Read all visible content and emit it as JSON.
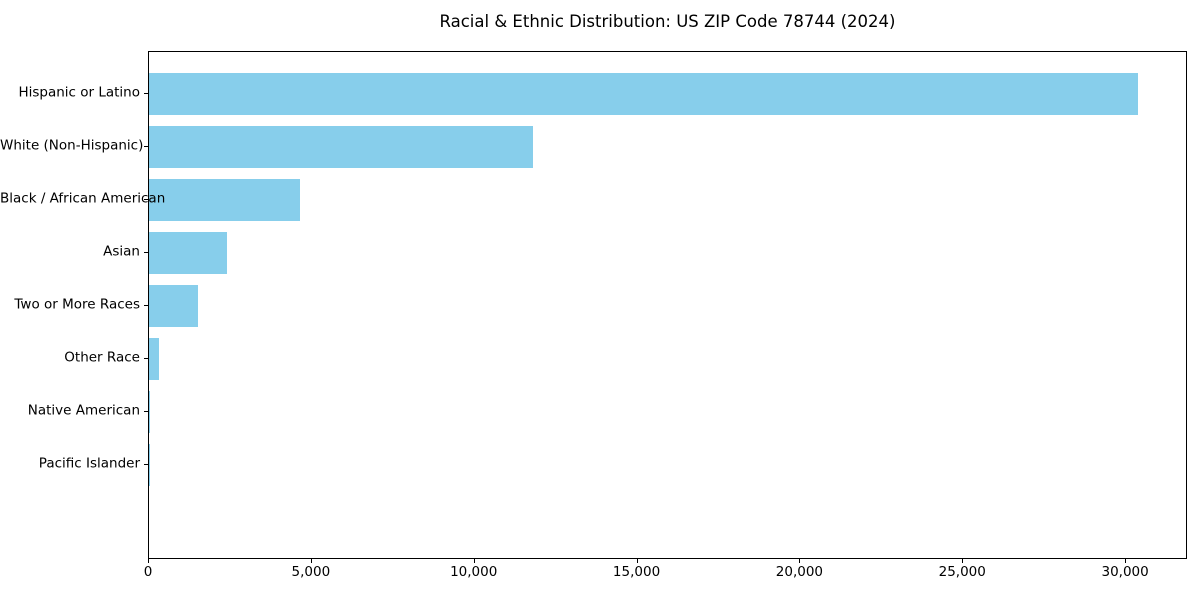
{
  "chart_data": {
    "type": "bar",
    "orientation": "horizontal",
    "title": "Racial & Ethnic Distribution: US ZIP Code 78744 (2024)",
    "xlabel": "",
    "ylabel": "",
    "categories": [
      "Hispanic or Latino",
      "White (Non-Hispanic)",
      "Black / African American",
      "Asian",
      "Two or More Races",
      "Other Race",
      "Native American",
      "Pacific Islander"
    ],
    "values": [
      30350,
      11800,
      4650,
      2400,
      1500,
      300,
      40,
      10
    ],
    "xlim": [
      0,
      31900
    ],
    "x_ticks": [
      0,
      5000,
      10000,
      15000,
      20000,
      25000,
      30000
    ],
    "x_tick_labels": [
      "0",
      "5,000",
      "10,000",
      "15,000",
      "20,000",
      "25,000",
      "30,000"
    ],
    "bar_color": "#87CEEB",
    "background_color": "#ffffff",
    "text_color": "#000000",
    "grid": false,
    "legend": null
  }
}
